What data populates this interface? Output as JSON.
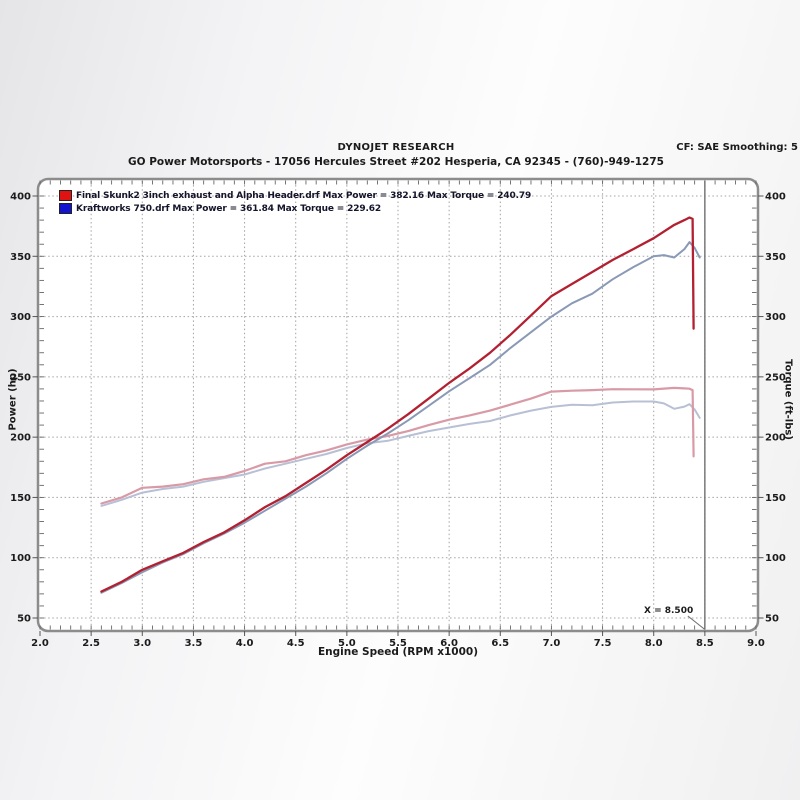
{
  "header": {
    "title": "DYNOJET RESEARCH",
    "subtitle": "GO Power Motorsports - 17056 Hercules Street #202 Hesperia, CA 92345 - (760)-949-1275",
    "cf_label": "CF: SAE  Smoothing: 5"
  },
  "chart_data": {
    "type": "line",
    "xlabel": "Engine Speed (RPM x1000)",
    "ylabel_left": "Power (hp)",
    "ylabel_right": "Torque (ft-lbs)",
    "xlim": [
      2.0,
      9.0
    ],
    "ylim": [
      50,
      400
    ],
    "x_ticks": [
      "2.0",
      "2.5",
      "3.0",
      "3.5",
      "4.0",
      "4.5",
      "5.0",
      "5.5",
      "6.0",
      "6.5",
      "7.0",
      "7.5",
      "8.0",
      "8.5",
      "9.0"
    ],
    "y_ticks": [
      50,
      100,
      150,
      200,
      250,
      300,
      350,
      400
    ],
    "grid": true,
    "cursor": {
      "x": 8.5,
      "label": "X = 8.500"
    },
    "legend_position": "top-left",
    "legend": [
      {
        "color": "#e01212",
        "label": "Final Skunk2 3inch exhaust and Alpha Header.drf Max Power = 382.16 Max Torque = 240.79"
      },
      {
        "color": "#1414cf",
        "label": "Kraftworks 750.drf Max Power = 361.84 Max Torque = 229.62"
      }
    ],
    "series": [
      {
        "name": "torque-kraftworks-750",
        "color": "#b7c0d4",
        "width": 2.0,
        "x": [
          2.6,
          2.8,
          3.0,
          3.2,
          3.4,
          3.6,
          3.8,
          4.0,
          4.2,
          4.4,
          4.6,
          4.8,
          5.0,
          5.2,
          5.4,
          5.6,
          5.8,
          6.0,
          6.2,
          6.4,
          6.6,
          6.8,
          7.0,
          7.2,
          7.4,
          7.6,
          7.8,
          8.0,
          8.1,
          8.2,
          8.3,
          8.35,
          8.4,
          8.45
        ],
        "values": [
          143,
          148,
          154,
          157,
          159,
          163,
          166,
          169,
          174,
          178,
          182,
          186,
          191,
          195,
          197,
          201,
          205,
          208,
          211,
          213.4,
          218,
          222,
          225.1,
          226.9,
          226.4,
          228.7,
          229.6,
          229.6,
          228,
          223.5,
          225.3,
          227.3,
          223,
          216
        ]
      },
      {
        "name": "torque-final-skunk2",
        "color": "#d89aa6",
        "width": 2.2,
        "x": [
          2.6,
          2.8,
          3.0,
          3.2,
          3.4,
          3.6,
          3.8,
          4.0,
          4.2,
          4.4,
          4.6,
          4.8,
          5.0,
          5.2,
          5.4,
          5.6,
          5.8,
          6.0,
          6.2,
          6.4,
          6.6,
          6.8,
          7.0,
          7.2,
          7.4,
          7.6,
          7.8,
          8.0,
          8.2,
          8.3,
          8.35,
          8.38,
          8.39
        ],
        "values": [
          145,
          150,
          158,
          159,
          161,
          165,
          167,
          172,
          178,
          180,
          185,
          189,
          194,
          198,
          201,
          205,
          210,
          214.5,
          218,
          222,
          227,
          232,
          237.8,
          238.5,
          239,
          239.8,
          239.7,
          239.6,
          240.8,
          240.4,
          240.2,
          239,
          184
        ]
      },
      {
        "name": "power-kraftworks-750",
        "color": "#8a99b6",
        "width": 2.0,
        "x": [
          2.6,
          2.8,
          3.0,
          3.2,
          3.4,
          3.6,
          3.8,
          4.0,
          4.2,
          4.4,
          4.6,
          4.8,
          5.0,
          5.2,
          5.4,
          5.6,
          5.8,
          6.0,
          6.2,
          6.4,
          6.6,
          6.8,
          7.0,
          7.2,
          7.4,
          7.6,
          7.8,
          8.0,
          8.1,
          8.2,
          8.3,
          8.35,
          8.4,
          8.45
        ],
        "values": [
          71,
          79,
          88,
          96,
          103,
          112,
          120,
          129,
          139,
          149,
          159,
          170,
          182,
          193,
          203,
          214,
          226,
          238,
          249,
          260,
          274,
          287,
          300,
          311,
          319,
          331,
          341,
          350,
          351,
          349,
          356,
          361.8,
          357,
          349
        ]
      },
      {
        "name": "power-final-skunk2",
        "color": "#b22031",
        "width": 2.3,
        "x": [
          2.6,
          2.8,
          3.0,
          3.2,
          3.4,
          3.6,
          3.8,
          4.0,
          4.2,
          4.4,
          4.6,
          4.8,
          5.0,
          5.2,
          5.4,
          5.6,
          5.8,
          6.0,
          6.2,
          6.4,
          6.6,
          6.8,
          7.0,
          7.2,
          7.4,
          7.6,
          7.8,
          8.0,
          8.2,
          8.3,
          8.35,
          8.38,
          8.39
        ],
        "values": [
          72,
          80,
          90,
          97,
          104,
          113,
          121,
          131,
          142,
          151,
          162,
          173,
          185,
          196,
          207,
          219,
          232,
          245,
          257,
          270,
          285,
          301,
          317,
          327,
          337,
          347,
          356,
          365,
          376,
          380,
          382.2,
          381,
          290
        ]
      }
    ]
  }
}
